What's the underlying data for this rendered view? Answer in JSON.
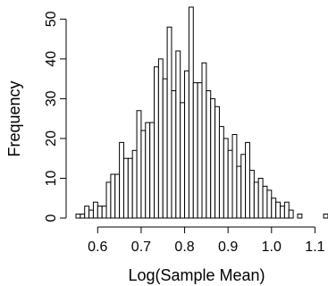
{
  "chart_data": {
    "type": "bar",
    "subtype": "histogram",
    "title": "",
    "xlabel": "Log(Sample Mean)",
    "ylabel": "Frequency",
    "xlim": [
      0.55,
      1.13
    ],
    "ylim": [
      0,
      53
    ],
    "bin_start": 0.55,
    "bin_width": 0.01,
    "x_ticks": [
      0.6,
      0.7,
      0.8,
      0.9,
      1.0,
      1.1
    ],
    "x_tick_labels": [
      "0.6",
      "0.7",
      "0.8",
      "0.9",
      "1.0",
      "1.1"
    ],
    "y_ticks": [
      0,
      10,
      20,
      30,
      40,
      50
    ],
    "y_tick_labels": [
      "0",
      "10",
      "20",
      "30",
      "40",
      "50"
    ],
    "grid": false,
    "bar_fill": "#ffffff",
    "bar_stroke": "#000000",
    "values": [
      1,
      1,
      3,
      2,
      4,
      3,
      3,
      9,
      11,
      11,
      19,
      15,
      15,
      17,
      27,
      22,
      24,
      24,
      38,
      40,
      35,
      48,
      32,
      42,
      29,
      37,
      53,
      34,
      34,
      39,
      32,
      30,
      28,
      23,
      20,
      17,
      21,
      13,
      16,
      19,
      12,
      9,
      10,
      8,
      7,
      5,
      4,
      3,
      4,
      2,
      0,
      1,
      0,
      0,
      0,
      0,
      0,
      1,
      0,
      1
    ]
  }
}
